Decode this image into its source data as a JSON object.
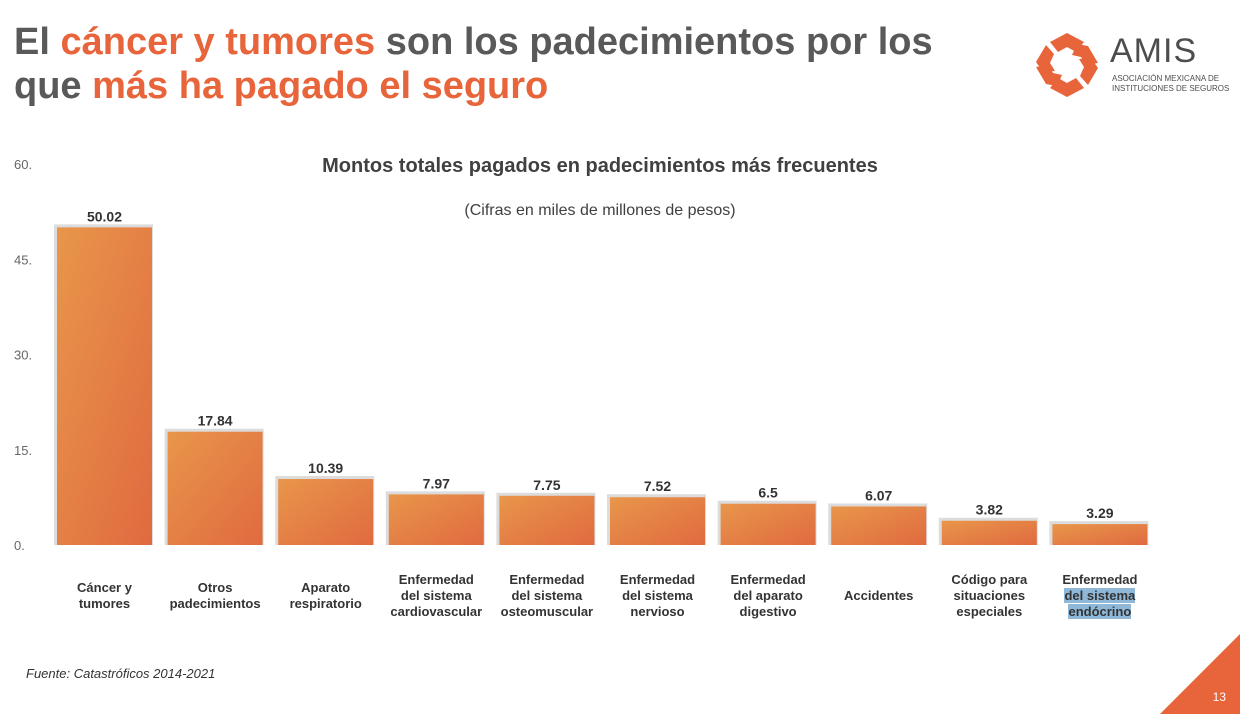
{
  "slide": {
    "title_parts": [
      {
        "text": "El ",
        "accent": false
      },
      {
        "text": "cáncer y tumores",
        "accent": true
      },
      {
        "text": " son los padecimientos por los que ",
        "accent": false
      },
      {
        "text": "más ha pagado el seguro",
        "accent": true
      }
    ],
    "logo": {
      "word": "AMIS",
      "subtitle_line1": "Asociación Mexicana de",
      "subtitle_line2": "Instituciones de Seguros"
    },
    "source": "Fuente: Catastróficos 2014-2021",
    "page_number": "13",
    "colors": {
      "accent": "#e8643a",
      "title_gray": "#595959",
      "bar_start": "#e8964a",
      "bar_end": "#e06a40"
    }
  },
  "chart_data": {
    "type": "bar",
    "title": "Montos totales pagados en padecimientos más frecuentes",
    "subtitle": "(Cifras en miles de millones de pesos)",
    "ylim": [
      0,
      60
    ],
    "yticks": [
      "0.",
      "15.",
      "30.",
      "45.",
      "60."
    ],
    "ytick_values": [
      0,
      15,
      30,
      45,
      60
    ],
    "categories": [
      "Cáncer y tumores",
      "Otros padecimientos",
      "Aparato respiratorio",
      "Enfermedad del sistema cardiovascular",
      "Enfermedad del sistema osteomuscular",
      "Enfermedad del sistema nervioso",
      "Enfermedad del aparato digestivo",
      "Accidentes",
      "Código para situaciones especiales",
      "Enfermedad del sistema endócrino"
    ],
    "values": [
      50.02,
      17.84,
      10.39,
      7.97,
      7.75,
      7.52,
      6.5,
      6.07,
      3.82,
      3.29
    ],
    "value_labels": [
      "50.02",
      "17.84",
      "10.39",
      "7.97",
      "7.75",
      "7.52",
      "6.5",
      "6.07",
      "3.82",
      "3.29"
    ]
  },
  "category_lines": [
    [
      "Cáncer y",
      "tumores"
    ],
    [
      "Otros",
      "padecimientos"
    ],
    [
      "Aparato",
      "respiratorio"
    ],
    [
      "Enfermedad",
      "del sistema",
      "cardiovascular"
    ],
    [
      "Enfermedad",
      "del sistema",
      "osteomuscular"
    ],
    [
      "Enfermedad",
      "del sistema",
      "nervioso"
    ],
    [
      "Enfermedad",
      "del aparato",
      "digestivo"
    ],
    [
      "Accidentes"
    ],
    [
      "Código para",
      "situaciones",
      "especiales"
    ],
    [
      "Enfermedad",
      "del sistema",
      "endócrino"
    ]
  ]
}
